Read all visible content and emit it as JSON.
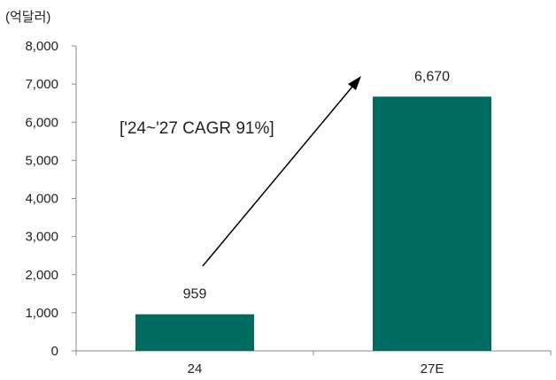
{
  "chart_data": {
    "type": "bar",
    "unit_label": "(억달러)",
    "categories": [
      "24",
      "27E"
    ],
    "values": [
      959,
      6670
    ],
    "data_labels": [
      "959",
      "6,670"
    ],
    "ylim": [
      0,
      8000
    ],
    "yticks": [
      0,
      1000,
      2000,
      3000,
      4000,
      5000,
      6000,
      7000,
      8000
    ],
    "ytick_labels": [
      "0",
      "1,000",
      "2,000",
      "3,000",
      "4,000",
      "5,000",
      "6,000",
      "7,000",
      "8,000"
    ],
    "annotation": "['24~'27 CAGR 91%]",
    "grid": false,
    "legend": "none",
    "bar_color": "#006b5f"
  }
}
